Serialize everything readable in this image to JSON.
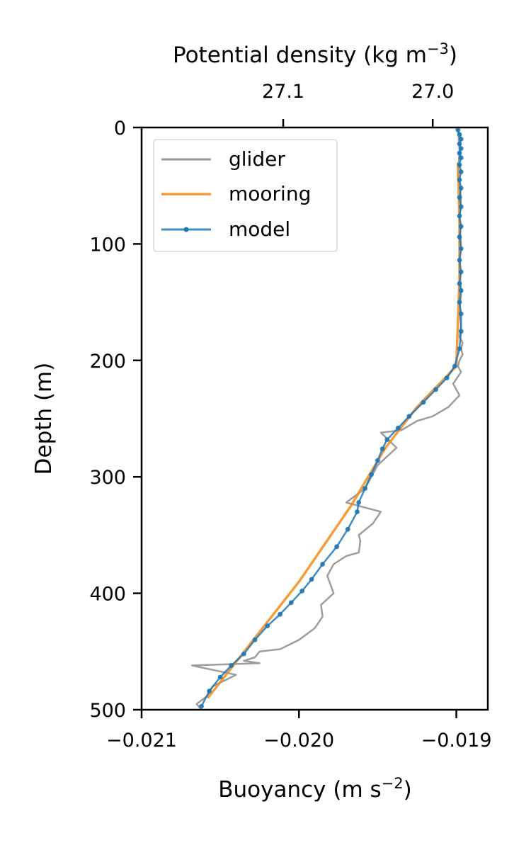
{
  "chart_data": {
    "type": "line",
    "xlabel": "Buoyancy (m s",
    "xlabel_sup": "−2",
    "xlabel_close": ")",
    "ylabel": "Depth (m)",
    "top_xlabel": "Potential density (kg m",
    "top_xlabel_sup": "−3",
    "top_xlabel_close": ")",
    "xlim": [
      -0.021,
      -0.0188
    ],
    "ylim": [
      500,
      0
    ],
    "y_inverted": true,
    "x_ticks": [
      -0.021,
      -0.02,
      -0.019
    ],
    "x_tick_labels": [
      "−0.021",
      "−0.020",
      "−0.019"
    ],
    "y_ticks": [
      0,
      100,
      200,
      300,
      400,
      500
    ],
    "y_tick_labels": [
      "0",
      "100",
      "200",
      "300",
      "400",
      "500"
    ],
    "top_ticks": [
      27.1,
      27.0
    ],
    "top_tick_labels": [
      "27.1",
      "27.0"
    ],
    "top_tick_buoyancy": [
      -0.0201,
      -0.01915
    ],
    "grid": false,
    "legend_position": "top-left",
    "series": [
      {
        "name": "glider",
        "color": "#8c8c8c",
        "marker": "none",
        "x": [
          -0.01899,
          -0.01898,
          -0.01899,
          -0.01897,
          -0.01898,
          -0.01897,
          -0.01898,
          -0.01897,
          -0.01898,
          -0.01897,
          -0.01898,
          -0.01896,
          -0.01897,
          -0.01896,
          -0.01898,
          -0.01899,
          -0.01897,
          -0.01902,
          -0.019,
          -0.01898,
          -0.01905,
          -0.01915,
          -0.01925,
          -0.01935,
          -0.01948,
          -0.01938,
          -0.0195,
          -0.01958,
          -0.0197,
          -0.01948,
          -0.01953,
          -0.01962,
          -0.01961,
          -0.01962,
          -0.0197,
          -0.01978,
          -0.01982,
          -0.01978,
          -0.01986,
          -0.01985,
          -0.0199,
          -0.02,
          -0.02012,
          -0.02025,
          -0.02028,
          -0.02035,
          -0.02025,
          -0.02068,
          -0.0204,
          -0.02055,
          -0.02058,
          -0.02065,
          -0.02062
        ],
        "y": [
          0,
          20,
          40,
          60,
          80,
          100,
          120,
          140,
          160,
          170,
          180,
          185,
          190,
          195,
          200,
          205,
          210,
          220,
          225,
          230,
          240,
          248,
          252,
          260,
          262,
          275,
          290,
          310,
          322,
          330,
          340,
          350,
          355,
          365,
          368,
          375,
          385,
          400,
          410,
          420,
          430,
          440,
          448,
          450,
          455,
          458,
          460,
          462,
          470,
          480,
          488,
          495,
          500
        ]
      },
      {
        "name": "mooring",
        "color": "#f28c1c",
        "marker": "none",
        "x": [
          -0.01899,
          -0.01898,
          -0.01898,
          -0.019,
          -0.01925,
          -0.01945,
          -0.01967,
          -0.02,
          -0.02058
        ],
        "y": [
          30,
          80,
          130,
          205,
          240,
          275,
          325,
          390,
          490
        ]
      },
      {
        "name": "model",
        "color": "#1f77b4",
        "marker": "dot",
        "x": [
          -0.01899,
          -0.01898,
          -0.01897,
          -0.01898,
          -0.01897,
          -0.01898,
          -0.01897,
          -0.01898,
          -0.01897,
          -0.01898,
          -0.01897,
          -0.01898,
          -0.01897,
          -0.01898,
          -0.01897,
          -0.01898,
          -0.01897,
          -0.01898,
          -0.01897,
          -0.01898,
          -0.01897,
          -0.01898,
          -0.01897,
          -0.01897,
          -0.01898,
          -0.01901,
          -0.01906,
          -0.01913,
          -0.01921,
          -0.0193,
          -0.01937,
          -0.01944,
          -0.01947,
          -0.0195,
          -0.01954,
          -0.01958,
          -0.01962,
          -0.01963,
          -0.01969,
          -0.01976,
          -0.01985,
          -0.01992,
          -0.01998,
          -0.02005,
          -0.02012,
          -0.0202,
          -0.02028,
          -0.02035,
          -0.02043,
          -0.0205,
          -0.02057,
          -0.02062
        ],
        "y": [
          2,
          6,
          10,
          14,
          18,
          22,
          26,
          32,
          38,
          45,
          52,
          60,
          68,
          76,
          85,
          94,
          104,
          114,
          124,
          134,
          140,
          150,
          160,
          175,
          190,
          205,
          215,
          225,
          236,
          248,
          258,
          268,
          276,
          286,
          298,
          310,
          322,
          330,
          345,
          360,
          375,
          388,
          398,
          408,
          418,
          428,
          440,
          452,
          462,
          472,
          484,
          497
        ]
      }
    ]
  }
}
